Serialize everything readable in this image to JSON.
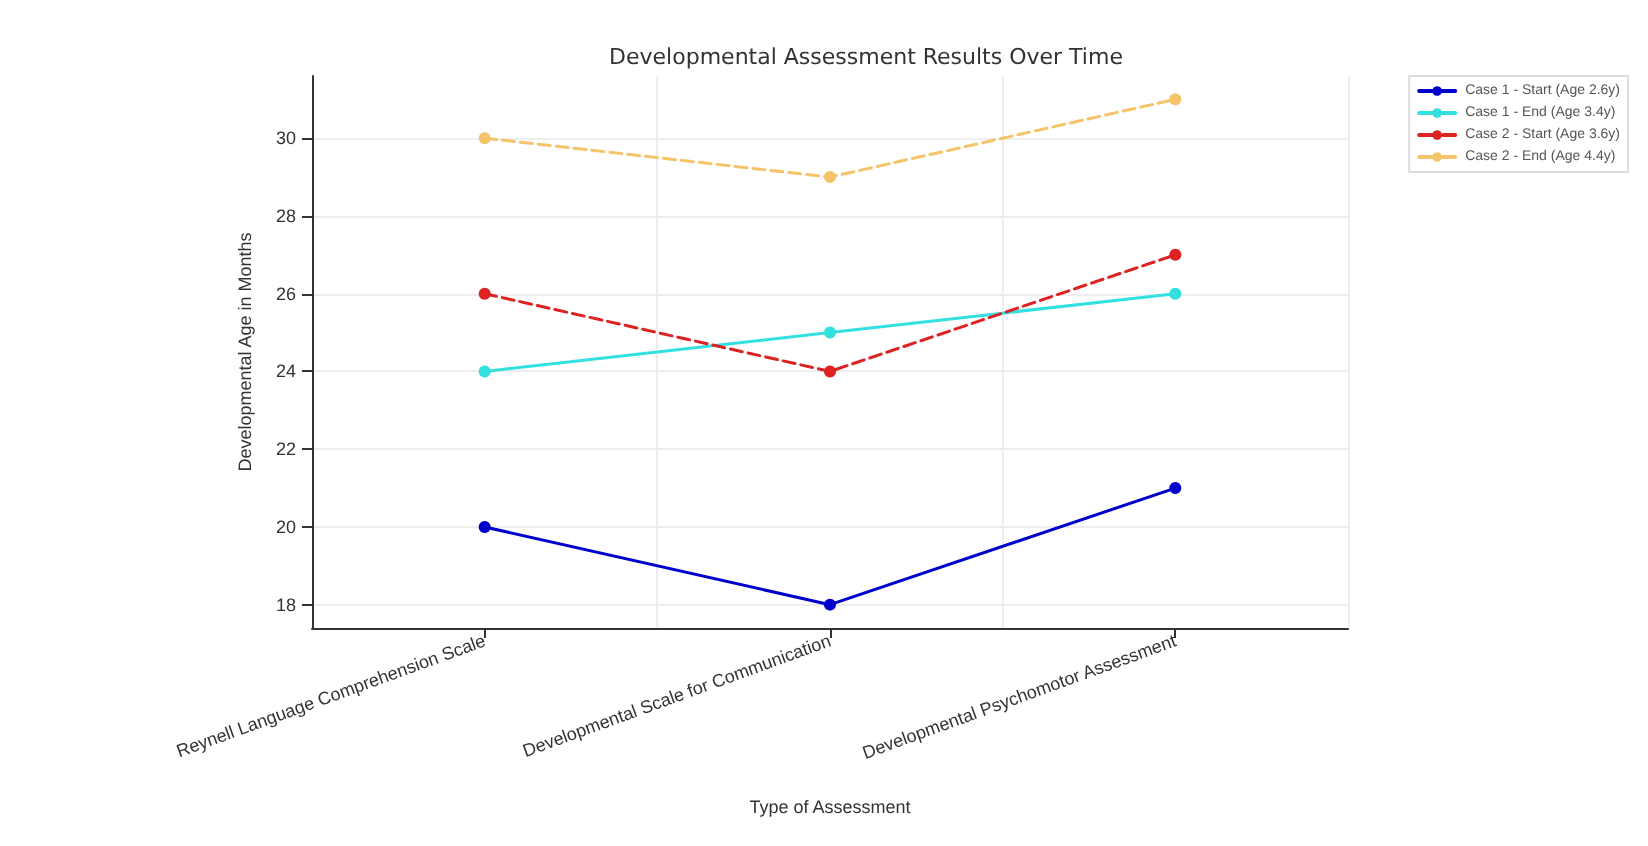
{
  "chart_data": {
    "type": "line",
    "title": "Developmental Assessment Results Over Time",
    "xlabel": "Type of Assessment",
    "ylabel": "Developmental Age in Months",
    "categories": [
      "Reynell Language Comprehension Scale",
      "Developmental Scale for Communication",
      "Developmental Psychomotor Assessment"
    ],
    "series": [
      {
        "name": "Case 1 - Start (Age 2.6y)",
        "color": "#0000cc",
        "values": [
          20,
          18,
          21
        ],
        "line_style": "solid"
      },
      {
        "name": "Case 1 - End (Age 3.4y)",
        "color": "#33e0e0",
        "values": [
          24,
          25,
          26
        ],
        "line_style": "solid"
      },
      {
        "name": "Case 2 - Start (Age 3.6y)",
        "color": "#dd2222",
        "values": [
          26,
          24,
          27
        ],
        "line_style": "dashed"
      },
      {
        "name": "Case 2 - End (Age 4.4y)",
        "color": "#f5c46a",
        "values": [
          30,
          29,
          31
        ],
        "line_style": "dashed"
      }
    ],
    "ylim": [
      17.4,
      31.6
    ],
    "yticks": [
      18,
      20,
      22,
      24,
      26,
      28,
      30
    ],
    "grid": true,
    "legend": "top right",
    "marker": "circle"
  }
}
